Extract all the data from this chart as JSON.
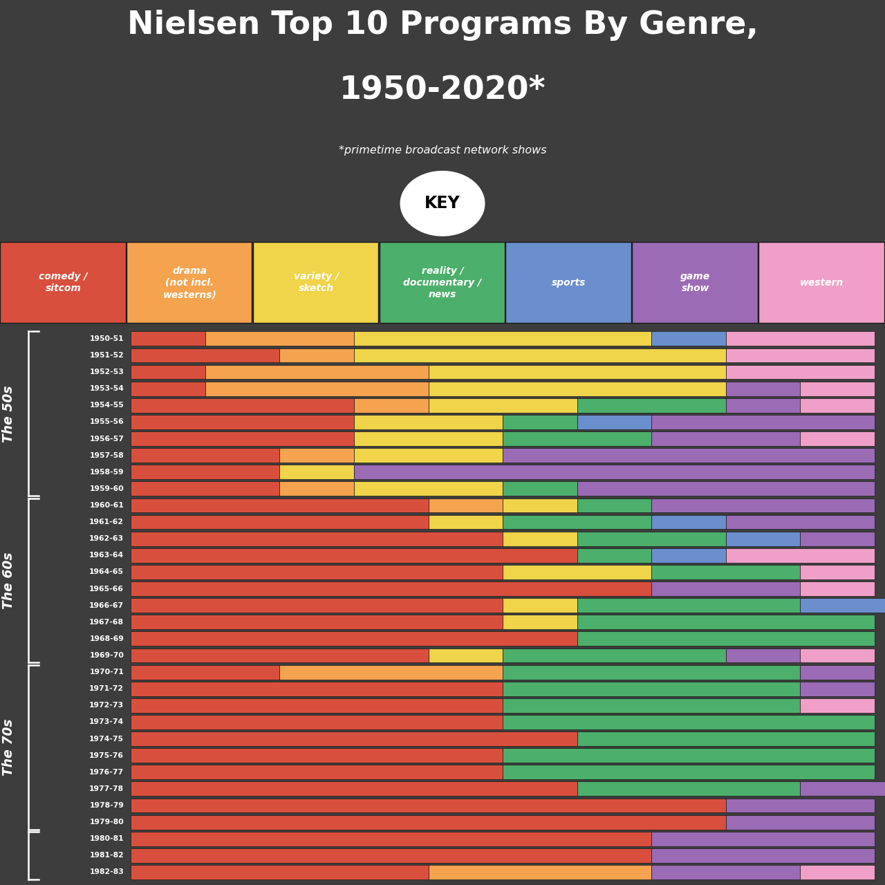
{
  "title_line1": "Nielsen Top 10 Programs By Genre,",
  "title_line2": "1950-2020*",
  "subtitle": "*primetime broadcast network shows",
  "background_color": "#3d3d3d",
  "genre_colors": [
    "#d94f3d",
    "#f5a34f",
    "#f0d44a",
    "#4caf6b",
    "#6b8fcd",
    "#9b6bb5",
    "#f0a0c8"
  ],
  "genre_labels": [
    "comedy /\nsitcom",
    "drama\n(not incl.\nwesterns)",
    "variety /\nsketch",
    "reality /\ndocumentary /\nnews",
    "sports",
    "game\nshow",
    "western"
  ],
  "years": [
    "1950-51",
    "1951-52",
    "1952-53",
    "1953-54",
    "1954-55",
    "1955-56",
    "1956-57",
    "1957-58",
    "1958-59",
    "1959-60",
    "1960-61",
    "1961-62",
    "1962-63",
    "1963-64",
    "1964-65",
    "1965-66",
    "1966-67",
    "1967-68",
    "1968-69",
    "1969-70",
    "1970-71",
    "1971-72",
    "1972-73",
    "1973-74",
    "1974-75",
    "1975-76",
    "1976-77",
    "1977-78",
    "1978-79",
    "1979-80",
    "1980-81",
    "1981-82",
    "1982-83"
  ],
  "chart_data": [
    [
      1,
      2,
      4,
      0,
      1,
      0,
      2
    ],
    [
      2,
      1,
      5,
      0,
      0,
      0,
      2
    ],
    [
      1,
      3,
      4,
      0,
      0,
      0,
      2
    ],
    [
      1,
      3,
      4,
      0,
      0,
      1,
      1
    ],
    [
      3,
      1,
      2,
      2,
      0,
      1,
      1
    ],
    [
      3,
      0,
      2,
      1,
      1,
      3,
      0
    ],
    [
      3,
      0,
      2,
      2,
      0,
      2,
      1
    ],
    [
      2,
      1,
      2,
      0,
      0,
      5,
      0
    ],
    [
      2,
      0,
      1,
      0,
      0,
      7,
      0
    ],
    [
      2,
      1,
      2,
      1,
      0,
      4,
      0
    ],
    [
      4,
      1,
      1,
      1,
      0,
      3,
      0
    ],
    [
      4,
      0,
      1,
      2,
      1,
      2,
      0
    ],
    [
      5,
      0,
      1,
      2,
      1,
      1,
      0
    ],
    [
      6,
      0,
      0,
      1,
      1,
      0,
      2
    ],
    [
      5,
      0,
      2,
      2,
      0,
      0,
      1
    ],
    [
      7,
      0,
      0,
      0,
      0,
      2,
      1
    ],
    [
      5,
      0,
      1,
      3,
      2,
      0,
      0
    ],
    [
      5,
      0,
      1,
      4,
      0,
      0,
      0
    ],
    [
      6,
      0,
      0,
      4,
      0,
      0,
      0
    ],
    [
      4,
      0,
      1,
      3,
      0,
      1,
      1
    ],
    [
      2,
      3,
      0,
      4,
      0,
      1,
      0
    ],
    [
      5,
      0,
      0,
      4,
      0,
      1,
      0
    ],
    [
      5,
      0,
      0,
      4,
      0,
      0,
      1
    ],
    [
      5,
      0,
      0,
      5,
      0,
      0,
      0
    ],
    [
      6,
      0,
      0,
      4,
      0,
      0,
      0
    ],
    [
      5,
      0,
      0,
      5,
      0,
      0,
      0
    ],
    [
      5,
      0,
      0,
      5,
      0,
      0,
      0
    ],
    [
      6,
      0,
      0,
      3,
      0,
      2,
      0
    ],
    [
      8,
      0,
      0,
      0,
      0,
      2,
      0
    ],
    [
      8,
      0,
      0,
      0,
      0,
      2,
      0
    ],
    [
      7,
      0,
      0,
      0,
      0,
      3,
      0
    ],
    [
      7,
      0,
      0,
      0,
      0,
      3,
      0
    ],
    [
      4,
      3,
      0,
      0,
      0,
      2,
      1
    ]
  ],
  "decade_groups": [
    {
      "label": "The 50s",
      "start": 0,
      "end": 9
    },
    {
      "label": "The 60s",
      "start": 10,
      "end": 19
    },
    {
      "label": "The 70s",
      "start": 20,
      "end": 29
    },
    {
      "label": "",
      "start": 30,
      "end": 32
    }
  ]
}
